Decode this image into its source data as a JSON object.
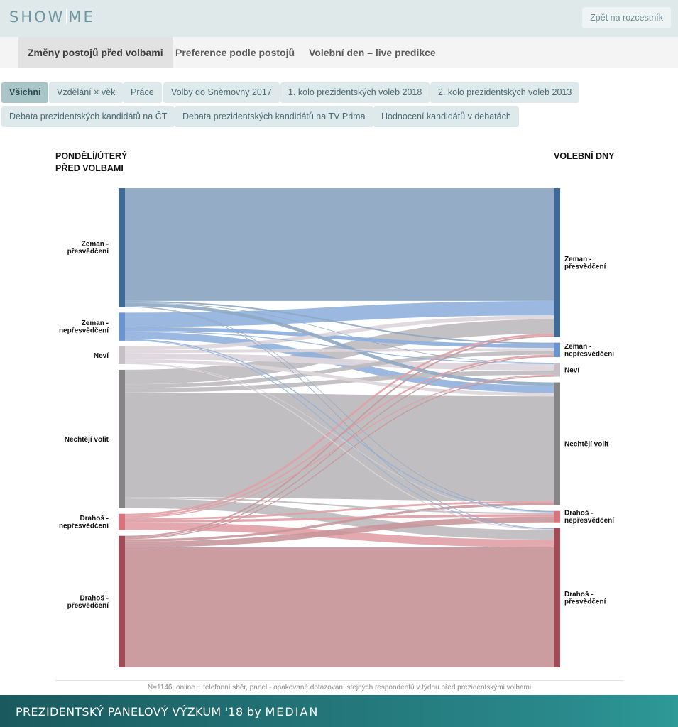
{
  "header": {
    "logo_left": "SHOW",
    "logo_right": "ME",
    "back_label": "Zpět na rozcestník"
  },
  "tabs": [
    {
      "label": "Změny postojů před volbami",
      "active": true
    },
    {
      "label": "Preference podle postojů",
      "active": false
    },
    {
      "label": "Volební den – live predikce",
      "active": false
    }
  ],
  "filters": [
    {
      "label": "Všichni",
      "active": true
    },
    {
      "label": "Vzdělání × věk",
      "active": false
    },
    {
      "label": "Práce",
      "active": false
    },
    {
      "label": "Volby do Sněmovny 2017",
      "active": false
    },
    {
      "label": "1. kolo prezidentských voleb 2018",
      "active": false
    },
    {
      "label": "2. kolo prezidentských voleb 2013",
      "active": false
    },
    {
      "label": "Debata prezidentských kandidátů na ČT",
      "active": false
    },
    {
      "label": "Debata prezidentských kandidátů na TV Prima",
      "active": false
    },
    {
      "label": "Hodnocení kandidátů v debatách",
      "active": false
    }
  ],
  "chart_data": {
    "type": "sankey",
    "left_title_line1": "PONDĚLÍ/ÚTERÝ",
    "left_title_line2": "PŘED VOLBAMI",
    "right_title": "VOLEBNÍ DNY",
    "nodes": [
      {
        "id": "zp",
        "label_line1": "Zeman -",
        "label_line2": "přesvědčení",
        "color": "#3f6a98"
      },
      {
        "id": "zn",
        "label_line1": "Zeman -",
        "label_line2": "nepřesvědčení",
        "color": "#6a93cf"
      },
      {
        "id": "nv",
        "label_line1": "Neví",
        "label_line2": "",
        "color": "#c7bfc6"
      },
      {
        "id": "nc",
        "label_line1": "Nechtějí volit",
        "label_line2": "",
        "color": "#878487"
      },
      {
        "id": "dn",
        "label_line1": "Drahoš -",
        "label_line2": "nepřesvědčení",
        "color": "#d8727c"
      },
      {
        "id": "dp",
        "label_line1": "Drahoš -",
        "label_line2": "přesvědčení",
        "color": "#a04b55"
      }
    ],
    "link_colors": {
      "zp": "#8ea8c2",
      "zn": "#8fb0dd",
      "nv": "#ddd6dc",
      "nc": "#bdbabd",
      "dn": "#e0a0a6",
      "dp": "#c8979b"
    },
    "flows": [
      {
        "from": "zp",
        "to": "zp",
        "value": 235
      },
      {
        "from": "zp",
        "to": "zn",
        "value": 3
      },
      {
        "from": "zp",
        "to": "nv",
        "value": 1
      },
      {
        "from": "zp",
        "to": "nc",
        "value": 7
      },
      {
        "from": "zp",
        "to": "dn",
        "value": 0.7
      },
      {
        "from": "zp",
        "to": "dp",
        "value": 0.7
      },
      {
        "from": "zn",
        "to": "zp",
        "value": 30
      },
      {
        "from": "zn",
        "to": "zn",
        "value": 8
      },
      {
        "from": "zn",
        "to": "nv",
        "value": 2
      },
      {
        "from": "zn",
        "to": "nc",
        "value": 15
      },
      {
        "from": "zn",
        "to": "dn",
        "value": 2
      },
      {
        "from": "zn",
        "to": "dp",
        "value": 1.5
      },
      {
        "from": "nv",
        "to": "zp",
        "value": 8
      },
      {
        "from": "nv",
        "to": "zn",
        "value": 6
      },
      {
        "from": "nv",
        "to": "nv",
        "value": 13
      },
      {
        "from": "nv",
        "to": "nc",
        "value": 7
      },
      {
        "from": "nv",
        "to": "dn",
        "value": 1
      },
      {
        "from": "nv",
        "to": "dp",
        "value": 2
      },
      {
        "from": "nc",
        "to": "zp",
        "value": 30
      },
      {
        "from": "nc",
        "to": "zn",
        "value": 8
      },
      {
        "from": "nc",
        "to": "nv",
        "value": 9
      },
      {
        "from": "nc",
        "to": "nc",
        "value": 218
      },
      {
        "from": "nc",
        "to": "dn",
        "value": 3
      },
      {
        "from": "nc",
        "to": "dp",
        "value": 20
      },
      {
        "from": "dn",
        "to": "zp",
        "value": 4
      },
      {
        "from": "dn",
        "to": "zn",
        "value": 3
      },
      {
        "from": "dn",
        "to": "nv",
        "value": 2
      },
      {
        "from": "dn",
        "to": "nc",
        "value": 4
      },
      {
        "from": "dn",
        "to": "dn",
        "value": 5
      },
      {
        "from": "dn",
        "to": "dp",
        "value": 16
      },
      {
        "from": "dp",
        "to": "zp",
        "value": 3
      },
      {
        "from": "dp",
        "to": "zn",
        "value": 2
      },
      {
        "from": "dp",
        "to": "nv",
        "value": 2
      },
      {
        "from": "dp",
        "to": "nc",
        "value": 5
      },
      {
        "from": "dp",
        "to": "dn",
        "value": 12
      },
      {
        "from": "dp",
        "to": "dp",
        "value": 250
      }
    ]
  },
  "footnote": "N=1146, online + telefonní sběr, panel - opakované dotazování stejných respondentů v týdnu před prezidentskými volbami",
  "footer": {
    "brand": "PREZIDENTSKÝ PANELOVÝ VÝZKUM '18",
    "by": "by",
    "company": "MEDIAN"
  }
}
